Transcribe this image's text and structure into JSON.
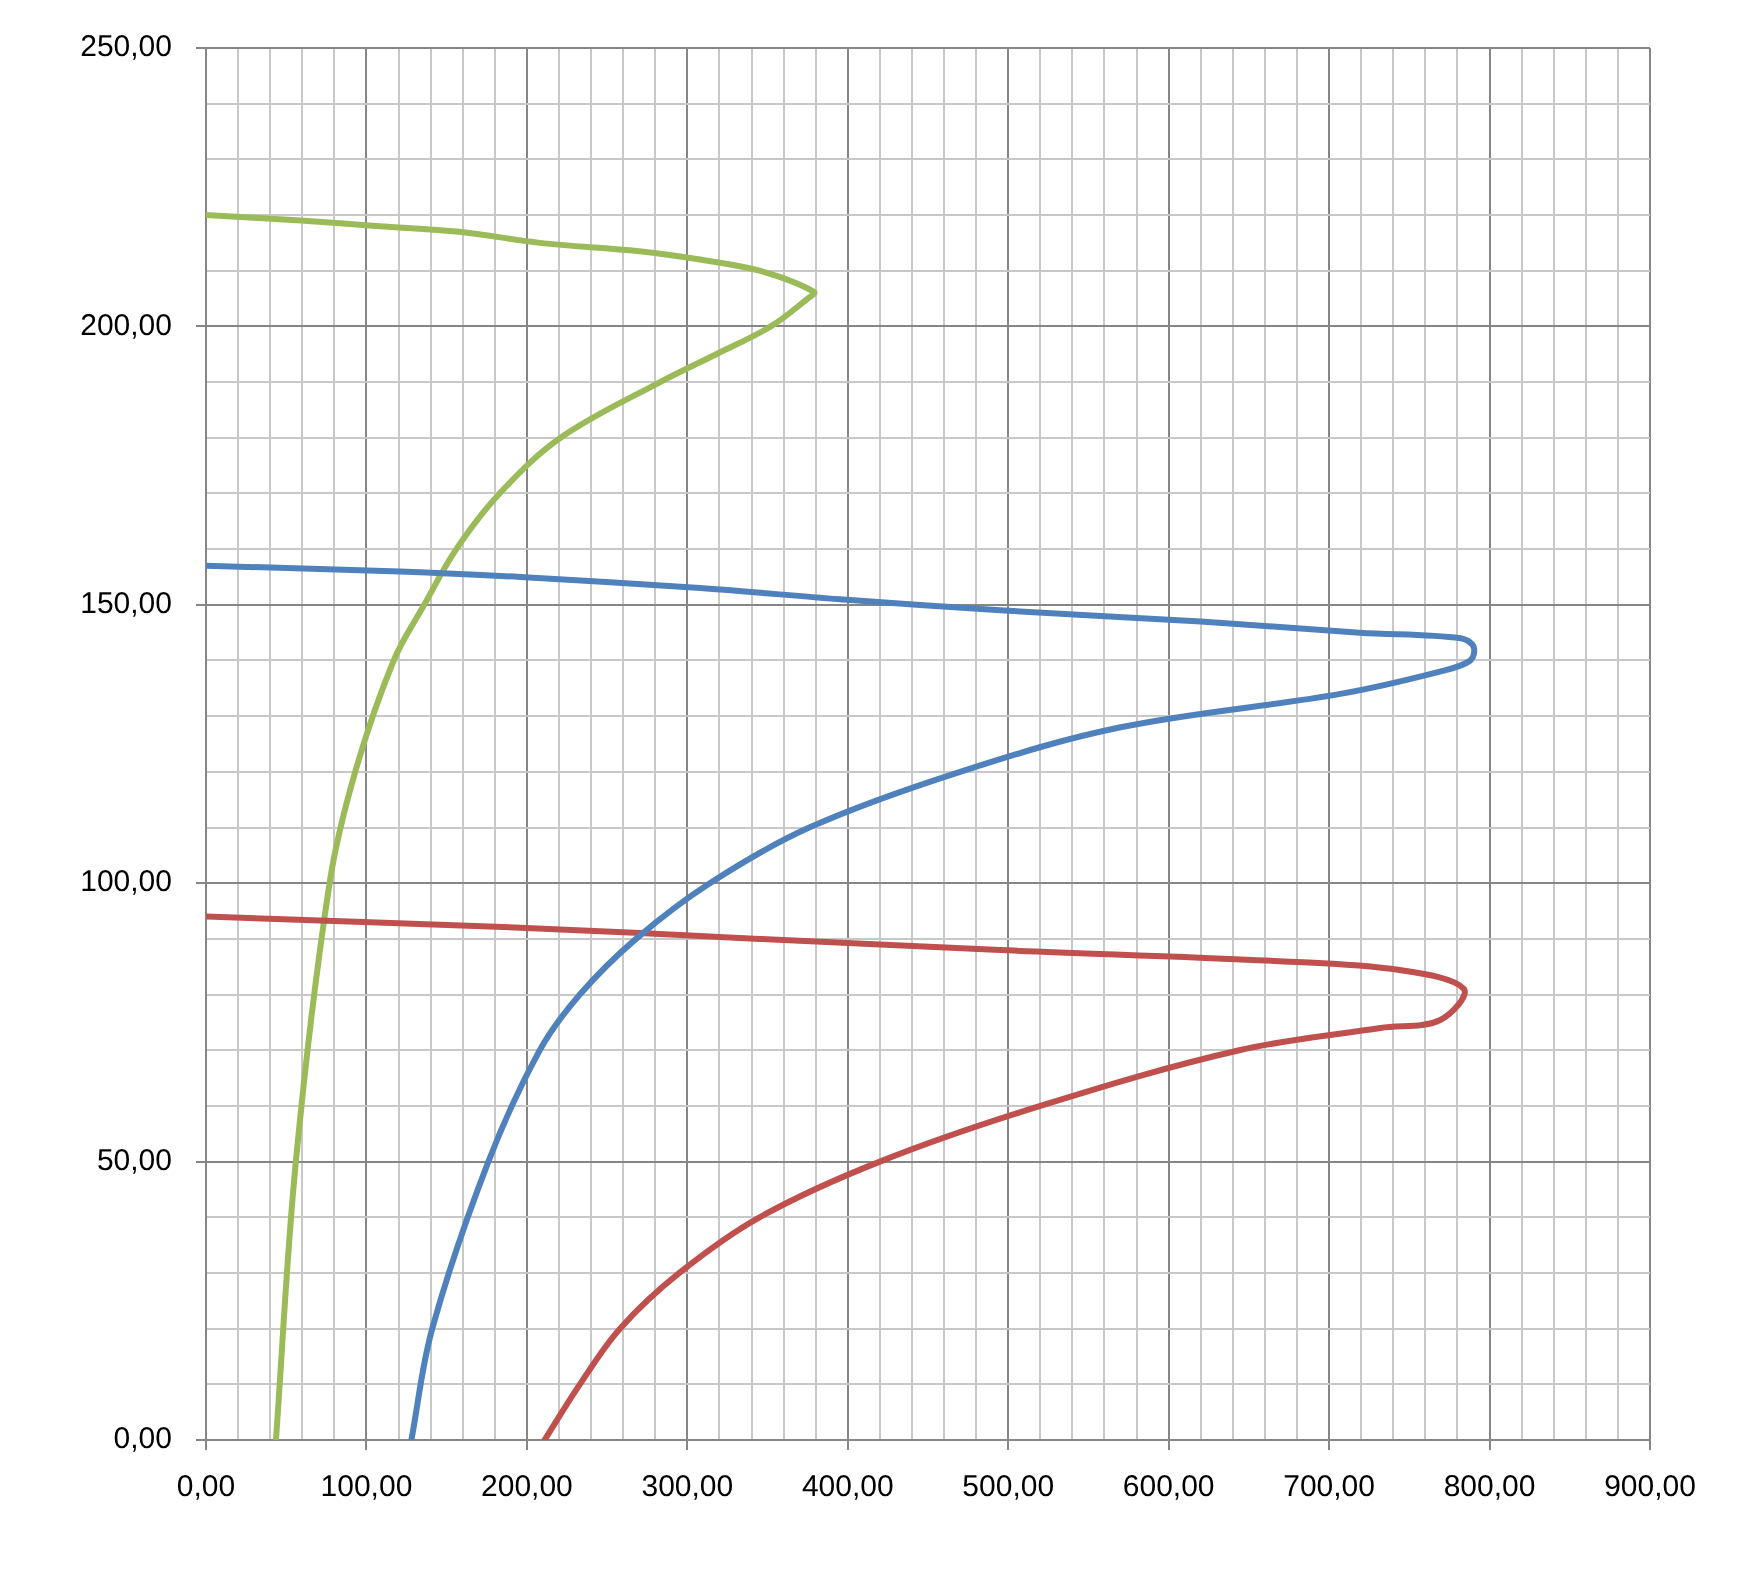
{
  "chart_data": {
    "type": "line",
    "grid": true,
    "legend": false,
    "marker": "none",
    "line_style": "solid",
    "xlim": [
      0,
      900
    ],
    "ylim": [
      0,
      250
    ],
    "xticks": [
      {
        "value": 0,
        "label": "0,00"
      },
      {
        "value": 20,
        "label": null
      },
      {
        "value": 40,
        "label": null
      },
      {
        "value": 60,
        "label": null
      },
      {
        "value": 80,
        "label": null
      },
      {
        "value": 100,
        "label": "100,00"
      },
      {
        "value": 120,
        "label": null
      },
      {
        "value": 140,
        "label": null
      },
      {
        "value": 160,
        "label": null
      },
      {
        "value": 180,
        "label": null
      },
      {
        "value": 200,
        "label": "200,00"
      },
      {
        "value": 220,
        "label": null
      },
      {
        "value": 240,
        "label": null
      },
      {
        "value": 260,
        "label": null
      },
      {
        "value": 280,
        "label": null
      },
      {
        "value": 300,
        "label": "300,00"
      },
      {
        "value": 320,
        "label": null
      },
      {
        "value": 340,
        "label": null
      },
      {
        "value": 360,
        "label": null
      },
      {
        "value": 380,
        "label": null
      },
      {
        "value": 400,
        "label": "400,00"
      },
      {
        "value": 420,
        "label": null
      },
      {
        "value": 440,
        "label": null
      },
      {
        "value": 460,
        "label": null
      },
      {
        "value": 480,
        "label": null
      },
      {
        "value": 500,
        "label": "500,00"
      },
      {
        "value": 520,
        "label": null
      },
      {
        "value": 540,
        "label": null
      },
      {
        "value": 560,
        "label": null
      },
      {
        "value": 580,
        "label": null
      },
      {
        "value": 600,
        "label": "600,00"
      },
      {
        "value": 620,
        "label": null
      },
      {
        "value": 640,
        "label": null
      },
      {
        "value": 660,
        "label": null
      },
      {
        "value": 680,
        "label": null
      },
      {
        "value": 700,
        "label": "700,00"
      },
      {
        "value": 720,
        "label": null
      },
      {
        "value": 740,
        "label": null
      },
      {
        "value": 760,
        "label": null
      },
      {
        "value": 780,
        "label": null
      },
      {
        "value": 800,
        "label": "800,00"
      },
      {
        "value": 820,
        "label": null
      },
      {
        "value": 840,
        "label": null
      },
      {
        "value": 860,
        "label": null
      },
      {
        "value": 880,
        "label": null
      },
      {
        "value": 900,
        "label": "900,00"
      }
    ],
    "yticks": [
      {
        "value": 0,
        "label": "0,00"
      },
      {
        "value": 10,
        "label": null
      },
      {
        "value": 20,
        "label": null
      },
      {
        "value": 30,
        "label": null
      },
      {
        "value": 40,
        "label": null
      },
      {
        "value": 50,
        "label": "50,00"
      },
      {
        "value": 60,
        "label": null
      },
      {
        "value": 70,
        "label": null
      },
      {
        "value": 80,
        "label": null
      },
      {
        "value": 90,
        "label": null
      },
      {
        "value": 100,
        "label": "100,00"
      },
      {
        "value": 110,
        "label": null
      },
      {
        "value": 120,
        "label": null
      },
      {
        "value": 130,
        "label": null
      },
      {
        "value": 140,
        "label": null
      },
      {
        "value": 150,
        "label": "150,00"
      },
      {
        "value": 160,
        "label": null
      },
      {
        "value": 170,
        "label": null
      },
      {
        "value": 180,
        "label": null
      },
      {
        "value": 190,
        "label": null
      },
      {
        "value": 200,
        "label": "200,00"
      },
      {
        "value": 210,
        "label": null
      },
      {
        "value": 220,
        "label": null
      },
      {
        "value": 230,
        "label": null
      },
      {
        "value": 240,
        "label": null
      },
      {
        "value": 250,
        "label": "250,00"
      }
    ],
    "series": [
      {
        "color": "#4f81bd",
        "x": [
          128,
          141,
          176,
          208,
          233,
          268,
          314,
          376,
          470,
          570,
          707,
          769,
          788,
          790,
          782,
          719,
          620,
          495,
          395,
          308,
          196,
          121,
          0
        ],
        "values": [
          0,
          20,
          50,
          70,
          80,
          90,
          100,
          110,
          120,
          128,
          134,
          138,
          140,
          142.5,
          144,
          145,
          147,
          149,
          151,
          153,
          155,
          156,
          157
        ]
      },
      {
        "color": "#c0504d",
        "x": [
          211,
          233,
          258,
          295,
          345,
          420,
          520,
          644,
          732,
          769,
          784,
          744,
          669,
          495,
          345,
          196,
          0
        ],
        "values": [
          0,
          10,
          20,
          30,
          40,
          50,
          60,
          70,
          74,
          75.4,
          81,
          84.4,
          86,
          88,
          90,
          92,
          94
        ]
      },
      {
        "color": "#9bbb59",
        "x": [
          43.6,
          56,
          77,
          93,
          117,
          136,
          156,
          183,
          221,
          283,
          318,
          352,
          375,
          379,
          345,
          308,
          270,
          208,
          158,
          108,
          59,
          0
        ],
        "values": [
          0,
          50,
          100,
          120,
          140,
          150,
          160,
          170,
          180,
          190,
          195,
          200,
          205,
          206.2,
          210,
          212,
          213.5,
          215,
          217,
          218,
          219,
          220
        ]
      }
    ]
  }
}
